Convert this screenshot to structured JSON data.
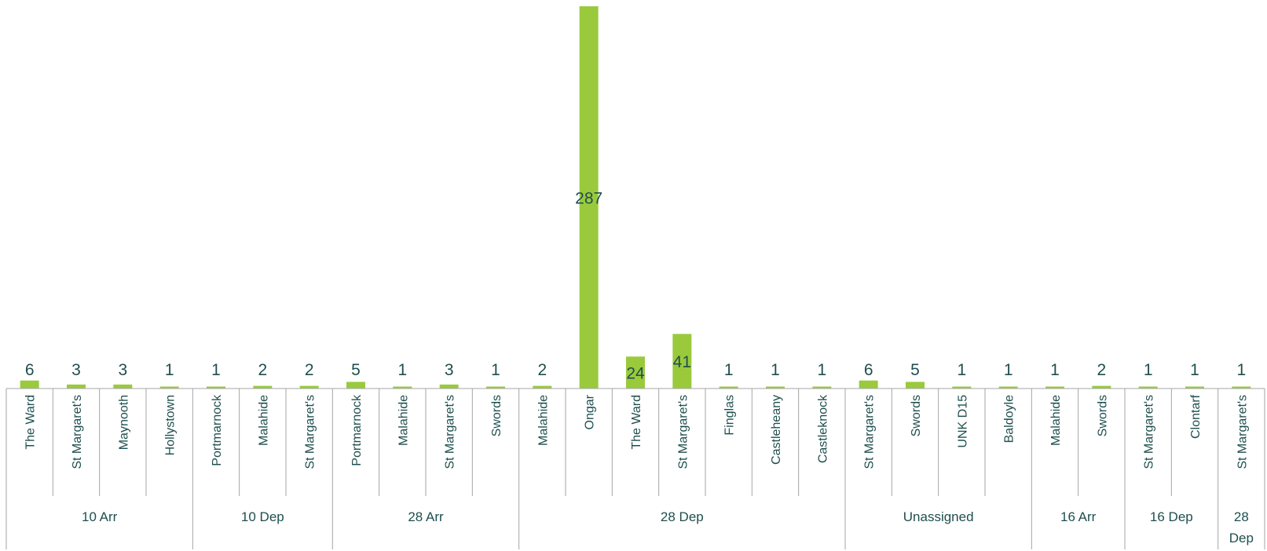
{
  "chart_data": {
    "type": "bar",
    "title": "",
    "xlabel": "",
    "ylabel": "",
    "bar_color": "#9ACA3C",
    "text_color": "#1F4E4E",
    "axis_color": "#A6A6A6",
    "grid": false,
    "legend": false,
    "ylim": [
      0,
      287
    ],
    "groups": [
      {
        "label": "10 Arr",
        "categories": [
          "The Ward",
          "St Margaret's",
          "Maynooth",
          "Hollystown"
        ],
        "values": [
          6,
          3,
          3,
          1
        ]
      },
      {
        "label": "10 Dep",
        "categories": [
          "Portmarnock",
          "Malahide",
          "St Margaret's"
        ],
        "values": [
          1,
          2,
          2
        ]
      },
      {
        "label": "28 Arr",
        "categories": [
          "Portmarnock",
          "Malahide",
          "St Margaret's",
          "Swords"
        ],
        "values": [
          5,
          1,
          3,
          1
        ]
      },
      {
        "label": "28 Dep",
        "categories": [
          "Malahide",
          "Ongar",
          "The Ward",
          "St Margaret's",
          "Finglas",
          "Castleheany",
          "Castleknock"
        ],
        "values": [
          2,
          287,
          24,
          41,
          1,
          1,
          1
        ]
      },
      {
        "label": "Unassigned",
        "categories": [
          "St Margaret's",
          "Swords",
          "UNK D15",
          "Baldoyle"
        ],
        "values": [
          6,
          5,
          1,
          1
        ]
      },
      {
        "label": "16 Arr",
        "categories": [
          "Malahide",
          "Swords"
        ],
        "values": [
          1,
          2
        ]
      },
      {
        "label": "16 Dep",
        "categories": [
          "St Margaret's",
          "Clontarf"
        ],
        "values": [
          1,
          1
        ]
      },
      {
        "label": "28 Dep",
        "categories": [
          "St Margaret's"
        ],
        "values": [
          1
        ]
      }
    ]
  }
}
